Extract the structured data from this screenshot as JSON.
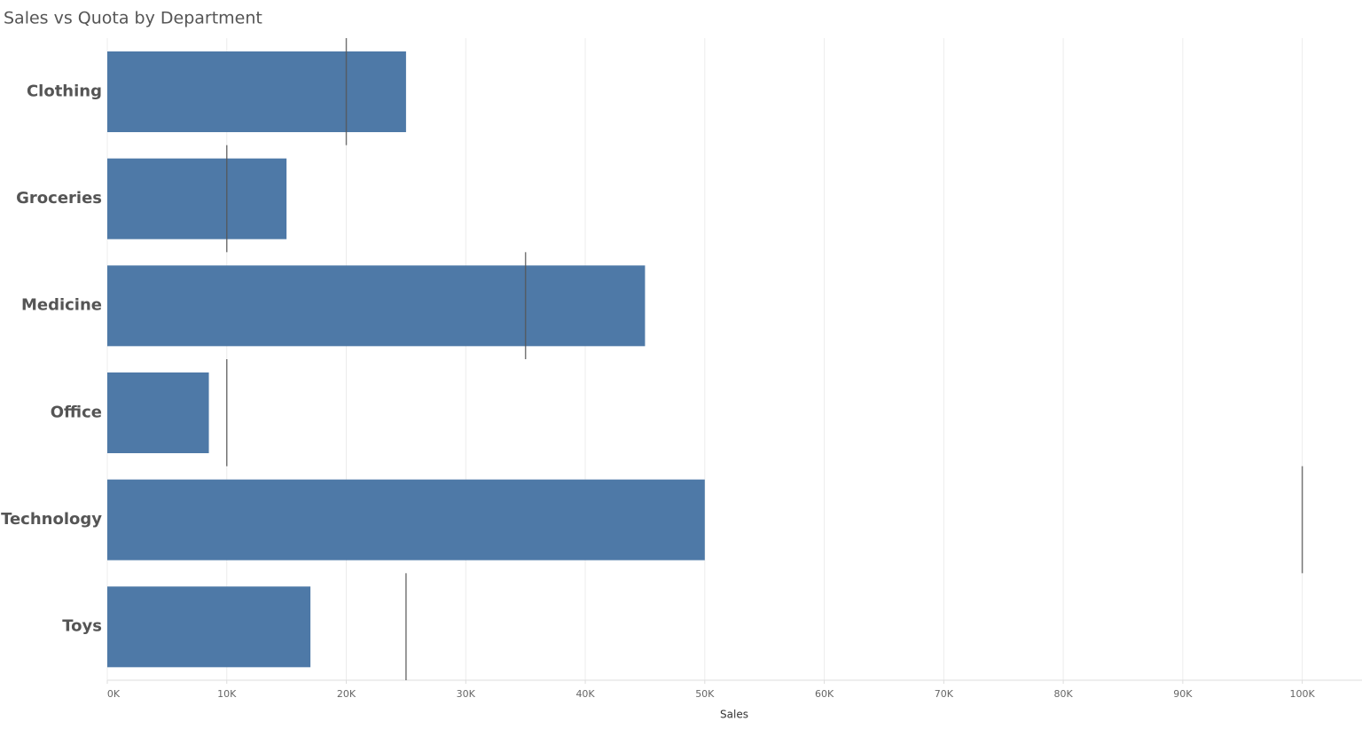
{
  "chart_data": {
    "type": "bullet",
    "title": "Sales vs Quota by Department",
    "x_label": "Sales",
    "categories": [
      "Clothing",
      "Groceries",
      "Medicine",
      "Office",
      "Technology",
      "Toys"
    ],
    "values": [
      25000,
      15000,
      45000,
      8500,
      50000,
      17000
    ],
    "target_values": [
      20000,
      10000,
      35000,
      10000,
      100000,
      25000
    ],
    "color": "#4e79a7",
    "target_color": "#555555",
    "xlim": [
      0,
      105000
    ],
    "xticks": [
      {
        "value": 0,
        "label": "0K"
      },
      {
        "value": 10000,
        "label": "10K"
      },
      {
        "value": 20000,
        "label": "20K"
      },
      {
        "value": 30000,
        "label": "30K"
      },
      {
        "value": 40000,
        "label": "40K"
      },
      {
        "value": 50000,
        "label": "50K"
      },
      {
        "value": 60000,
        "label": "60K"
      },
      {
        "value": 70000,
        "label": "70K"
      },
      {
        "value": 80000,
        "label": "80K"
      },
      {
        "value": 90000,
        "label": "90K"
      },
      {
        "value": 100000,
        "label": "100K"
      }
    ],
    "grid": true
  }
}
